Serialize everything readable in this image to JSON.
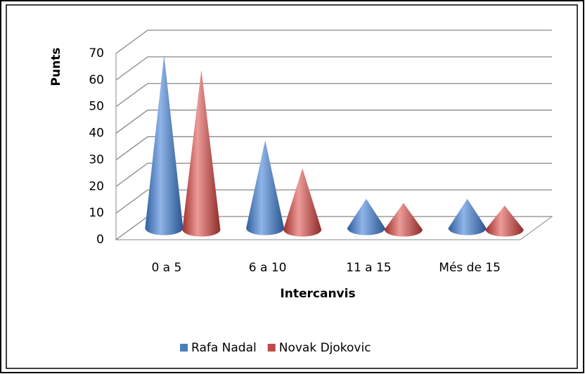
{
  "chart_data": {
    "type": "cone3d",
    "ylabel": "Punts",
    "xlabel": "Intercanvis",
    "categories": [
      "0 a 5",
      "6 a 10",
      "11 a 15",
      "Més de 15"
    ],
    "series": [
      {
        "name": "Rafa Nadal",
        "color": "#4a7ebb",
        "values": [
          65,
          33,
          11,
          11
        ]
      },
      {
        "name": "Novak Djokovic",
        "color": "#be4b48",
        "values": [
          60,
          23,
          10,
          9
        ]
      }
    ],
    "ylim": [
      0,
      70
    ],
    "yticks": [
      0,
      10,
      20,
      30,
      40,
      50,
      60,
      70
    ],
    "grid": true,
    "legend": "bottom"
  }
}
